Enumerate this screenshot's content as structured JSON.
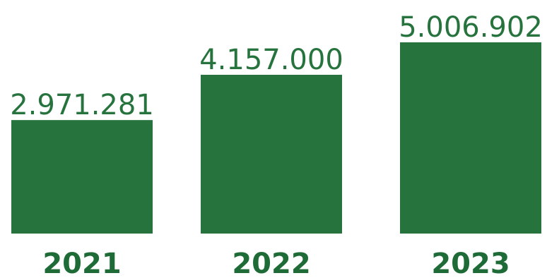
{
  "chart_data": {
    "type": "bar",
    "categories": [
      "2021",
      "2022",
      "2023"
    ],
    "values": [
      2971281,
      4157000,
      5006902
    ],
    "value_labels": [
      "2.971.281",
      "4.157.000",
      "5.006.902"
    ],
    "ylim": [
      0,
      5500000
    ],
    "grid": false,
    "legend": "none",
    "colors": {
      "bar": "#26733D",
      "value_label": "#26733D",
      "category_label": "#1F6B37"
    }
  }
}
